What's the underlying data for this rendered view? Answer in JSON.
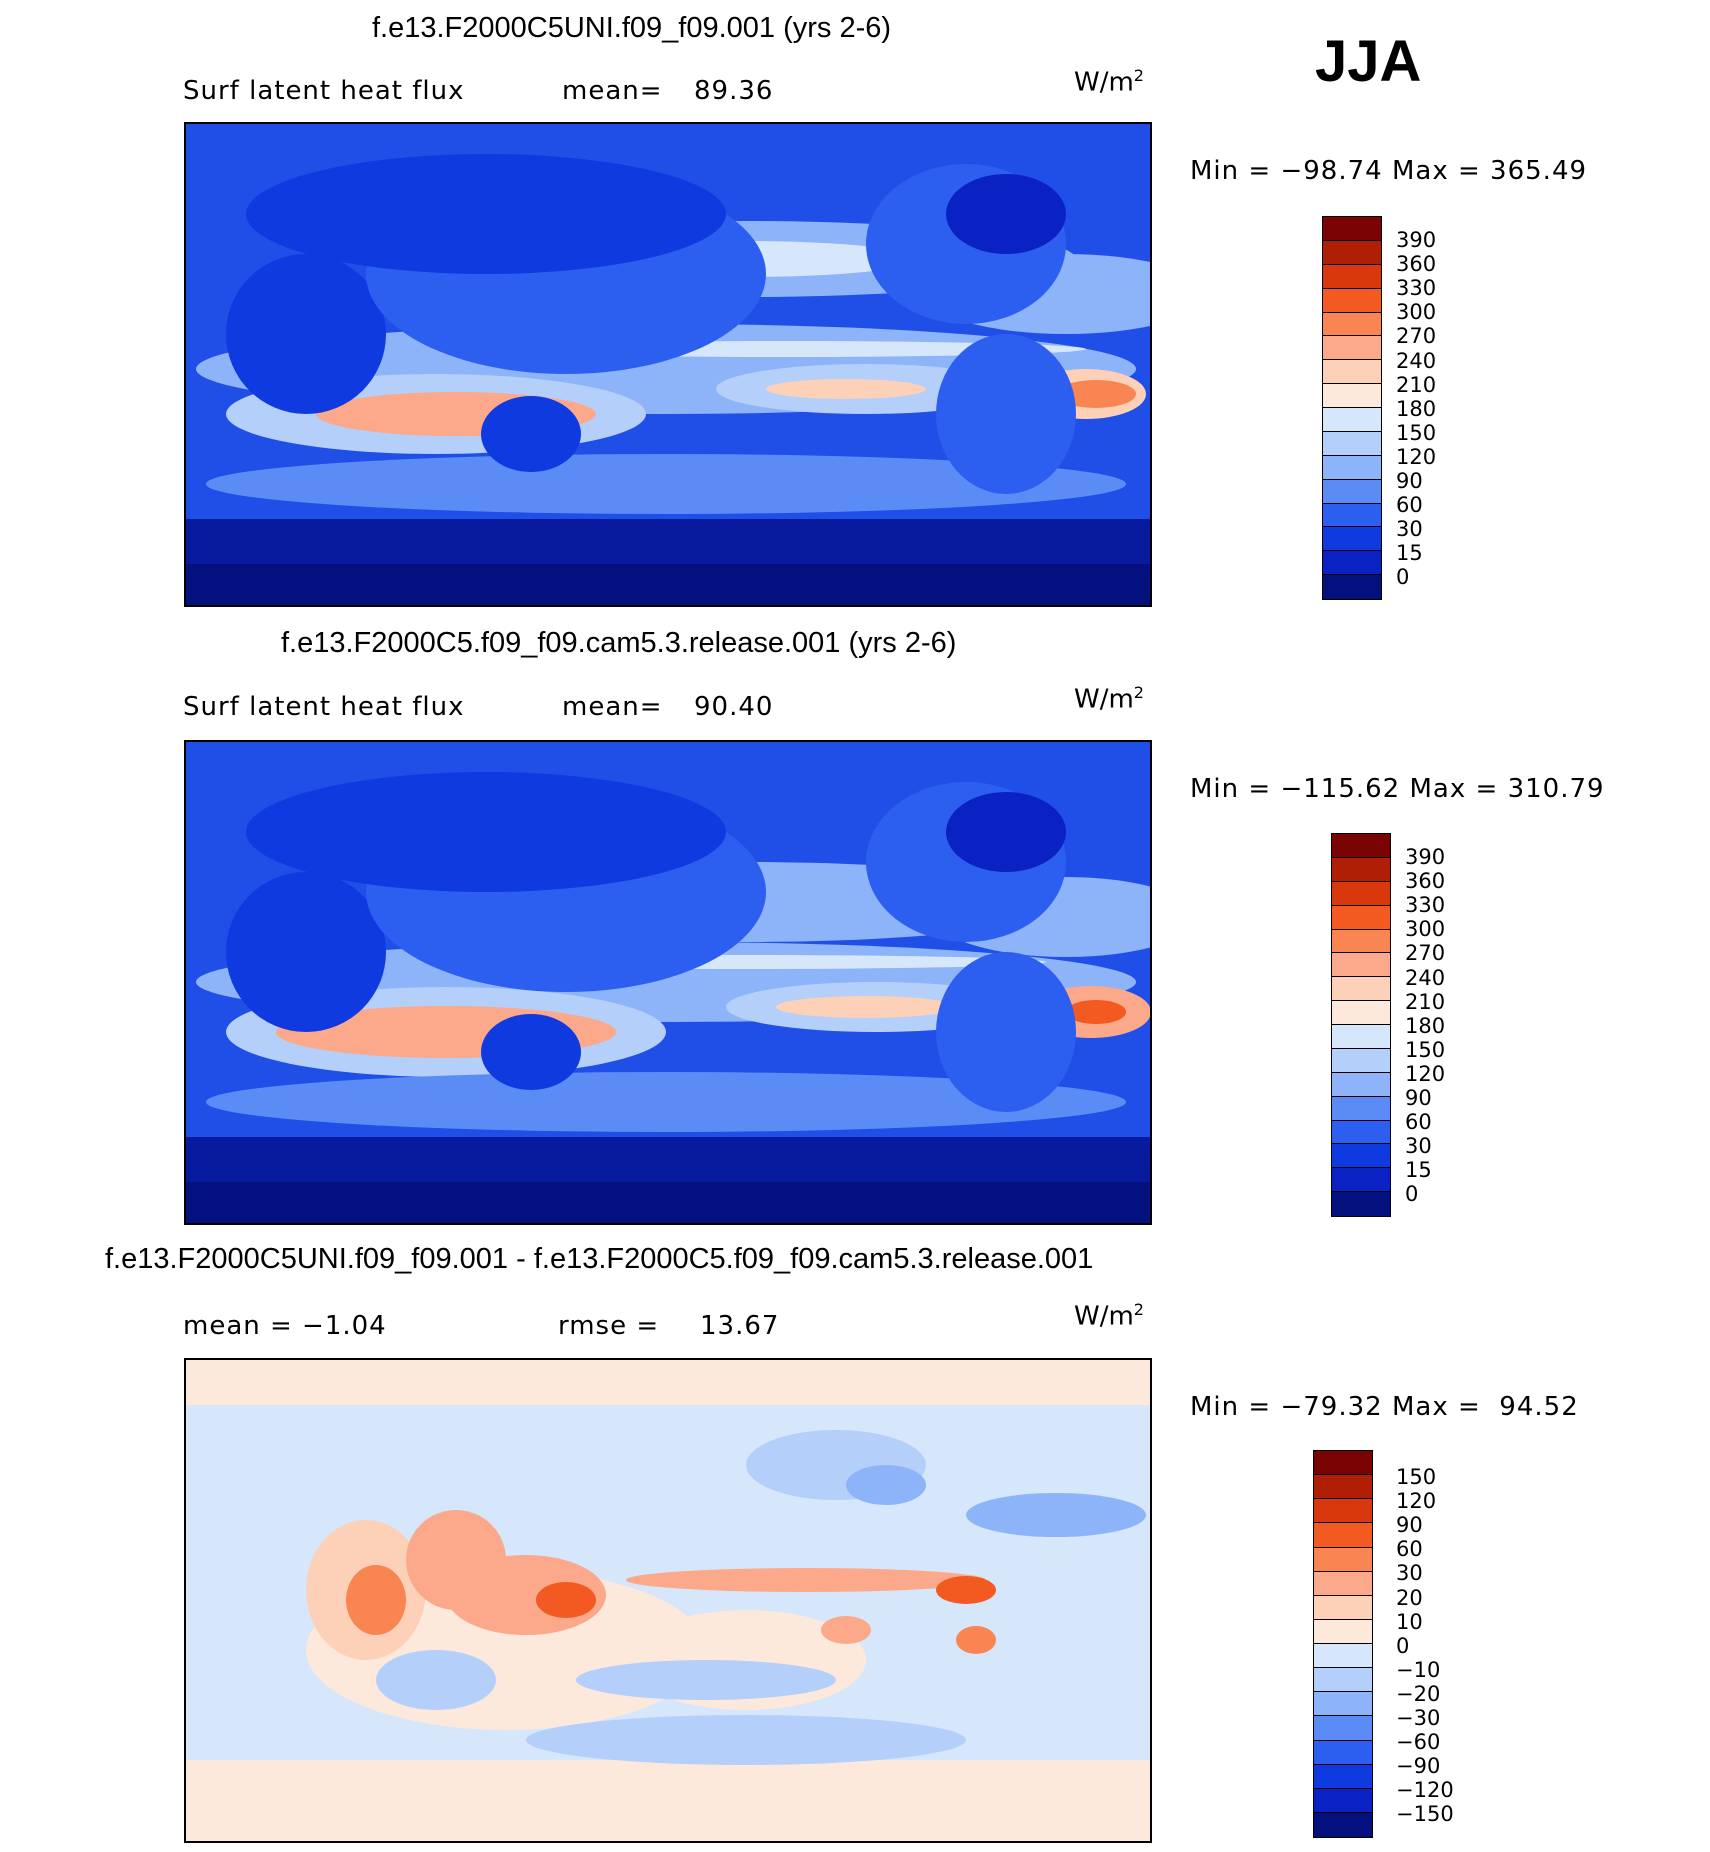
{
  "season": "JJA",
  "panels": [
    {
      "id": "p1",
      "title": "f.e13.F2000C5UNI.f09_f09.001 (yrs 2-6)",
      "left_label": "Surf latent heat flux",
      "stat_label": "mean=",
      "stat_value": "89.36",
      "units": "W/m",
      "units_sup": "2",
      "min_label": "Min",
      "min_value": "−98.74",
      "max_label": "Max",
      "max_value": "365.49",
      "palette": "abs",
      "levels": [
        "390",
        "360",
        "330",
        "300",
        "270",
        "240",
        "210",
        "180",
        "150",
        "120",
        "90",
        "60",
        "30",
        "15",
        "0"
      ]
    },
    {
      "id": "p2",
      "title": "f.e13.F2000C5.f09_f09.cam5.3.release.001 (yrs 2-6)",
      "left_label": "Surf latent heat flux",
      "stat_label": "mean=",
      "stat_value": "90.40",
      "units": "W/m",
      "units_sup": "2",
      "min_label": "Min",
      "min_value": "−115.62",
      "max_label": "Max",
      "max_value": "310.79",
      "palette": "abs",
      "levels": [
        "390",
        "360",
        "330",
        "300",
        "270",
        "240",
        "210",
        "180",
        "150",
        "120",
        "90",
        "60",
        "30",
        "15",
        "0"
      ]
    },
    {
      "id": "p3",
      "title": "f.e13.F2000C5UNI.f09_f09.001 - f.e13.F2000C5.f09_f09.cam5.3.release.001",
      "left_label": "mean =   −1.04",
      "stat_label": "rmse =",
      "stat_value": "13.67",
      "units": "W/m",
      "units_sup": "2",
      "min_label": "Min",
      "min_value": "−79.32",
      "max_label": "Max",
      "max_value": " 94.52",
      "palette": "diff",
      "levels": [
        "150",
        "120",
        "90",
        "60",
        "30",
        "20",
        "10",
        "0",
        "−10",
        "−20",
        "−30",
        "−60",
        "−90",
        "−120",
        "−150"
      ]
    }
  ],
  "palettes": {
    "abs": [
      "#7a0403",
      "#b01e06",
      "#d8380b",
      "#f25a22",
      "#f98552",
      "#fba98a",
      "#fdd0b8",
      "#fde9dc",
      "#d6e6fb",
      "#b4cffa",
      "#8db3f9",
      "#5b8bf5",
      "#2c5ff0",
      "#0f3ae0",
      "#0a22c4",
      "#03107e"
    ],
    "diff": [
      "#7a0403",
      "#b01e06",
      "#d8380b",
      "#f25a22",
      "#f98552",
      "#fba98a",
      "#fdd0b8",
      "#fde9dc",
      "#d6e6fb",
      "#b4cffa",
      "#8db3f9",
      "#5b8bf5",
      "#2c5ff0",
      "#0f3ae0",
      "#0a22c4",
      "#03107e"
    ]
  }
}
